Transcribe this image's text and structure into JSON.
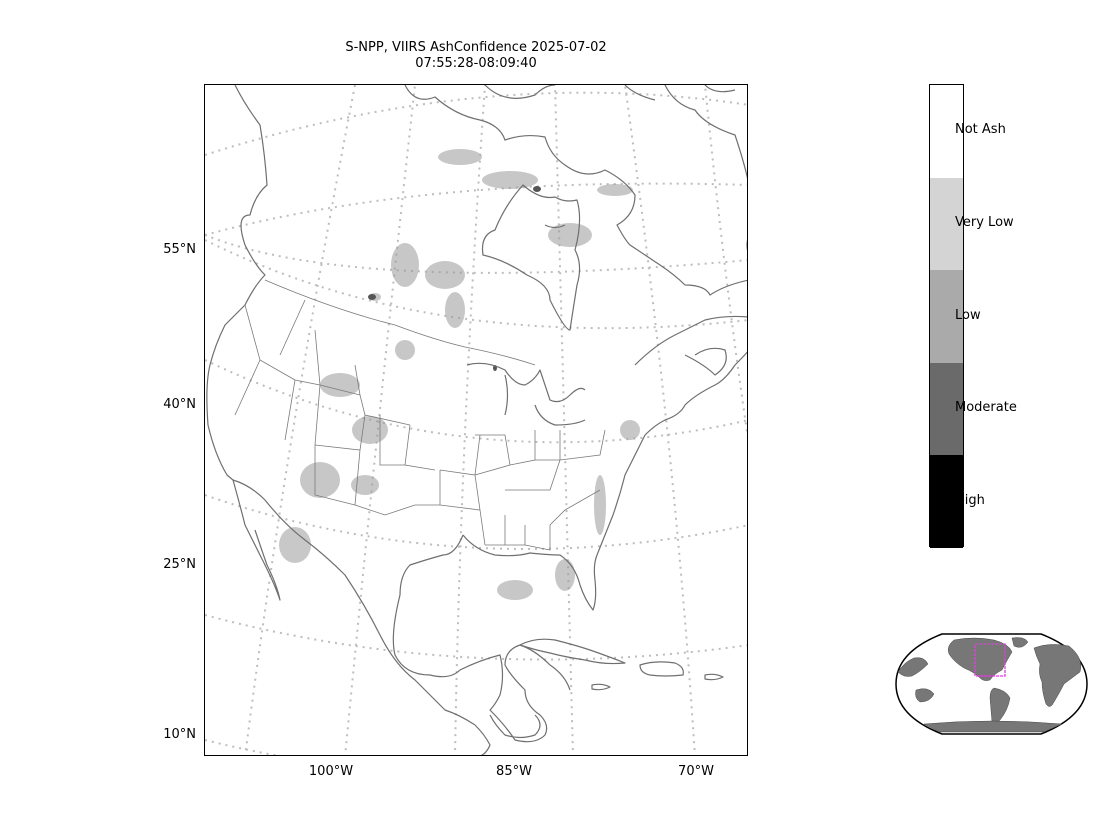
{
  "title": {
    "line1": "S-NPP, VIIRS AshConfidence 2025-07-02",
    "line2": "07:55:28-08:09:40"
  },
  "lat_labels": [
    "55°N",
    "40°N",
    "25°N",
    "10°N"
  ],
  "lon_labels": [
    "100°W",
    "85°W",
    "70°W"
  ],
  "colorbar": {
    "categories": [
      {
        "label": "Not Ash",
        "color": "#ffffff"
      },
      {
        "label": "Very Low",
        "color": "#d4d4d4"
      },
      {
        "label": "Low",
        "color": "#aaaaaa"
      },
      {
        "label": "Moderate",
        "color": "#6a6a6a"
      },
      {
        "label": "High",
        "color": "#000000"
      }
    ]
  },
  "colors": {
    "coastline": "#6f6f6f",
    "graticule": "#bdbdbd",
    "ash_signal": "#8a8a8a",
    "inset_land": "#777777",
    "inset_box": "#e040e0"
  }
}
